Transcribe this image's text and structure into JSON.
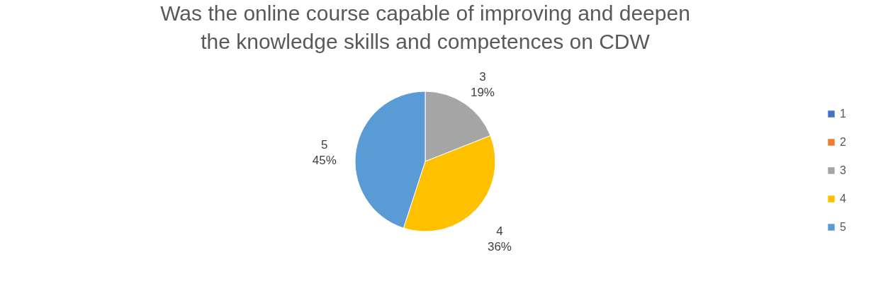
{
  "chart_data": {
    "type": "pie",
    "title": "Was the online course capable of improving and deepen the knowledge skills and competences on CDW",
    "categories": [
      "1",
      "2",
      "3",
      "4",
      "5"
    ],
    "values": [
      0,
      0,
      19,
      36,
      45
    ],
    "colors": [
      "#4472c4",
      "#ed7d31",
      "#a5a5a5",
      "#ffc000",
      "#5b9bd5"
    ],
    "value_labels": [
      null,
      null,
      "19%",
      "36%",
      "45%"
    ],
    "legend": "right"
  }
}
